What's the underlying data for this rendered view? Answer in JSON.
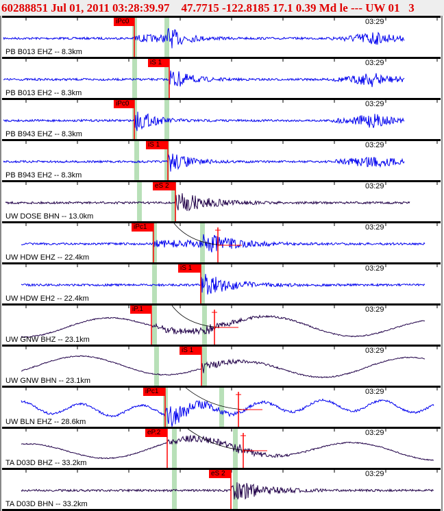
{
  "header": {
    "text": "60288851 Jul 01, 2011 03:28:39.97    47.7715 -122.8185 17.1 0.39 Md le --- UW 01   3"
  },
  "colors": {
    "pick": "#ff0000",
    "window": "#b8e0b8",
    "trace_short": "#0000ee",
    "trace_broad": "#200048"
  },
  "panels": [
    {
      "station": "PB B013 EHZ -- 8.3km",
      "pick": "iPc0",
      "time": "03:29"
    },
    {
      "station": "PB B013 EH2 -- 8.3km",
      "pick": "iS 1",
      "time": "03:29"
    },
    {
      "station": "PB B943 EHZ -- 8.3km",
      "pick": "iPc0",
      "time": "03:29"
    },
    {
      "station": "PB B943 EH2 -- 8.3km",
      "pick": "iS 1",
      "time": "03:29"
    },
    {
      "station": "UW DOSE BHN -- 13.0km",
      "pick": "eS 2",
      "time": "03:29"
    },
    {
      "station": "UW HDW EHZ -- 22.4km",
      "pick": "iPc1",
      "time": "03:29"
    },
    {
      "station": "UW HDW EH2 -- 22.4km",
      "pick": "iS 1",
      "time": "03:29"
    },
    {
      "station": "UW GNW BHZ -- 23.1km",
      "pick": "iP.1",
      "time": "03:29"
    },
    {
      "station": "UW GNW BHN -- 23.1km",
      "pick": "iS 1",
      "time": "03:29"
    },
    {
      "station": "UW BLN EHZ -- 28.6km",
      "pick": "iPc1",
      "time": "03:29"
    },
    {
      "station": "TA D03D BHZ -- 33.2km",
      "pick": "eP.2",
      "time": "03:29"
    },
    {
      "station": "TA D03D BHN -- 33.2km",
      "pick": "eS 2",
      "time": "03:29"
    }
  ]
}
